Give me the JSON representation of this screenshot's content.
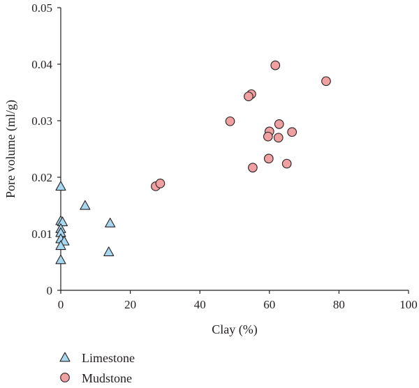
{
  "chart_data": {
    "type": "scatter",
    "xlabel": "Clay (%)",
    "ylabel": "Pore volume (ml/g)",
    "xlim": [
      0,
      100
    ],
    "ylim": [
      0,
      0.05
    ],
    "xticks": [
      0,
      20,
      40,
      60,
      80,
      100
    ],
    "yticks": [
      0,
      0.01,
      0.02,
      0.03,
      0.04,
      0.05
    ],
    "ytick_labels": [
      "0",
      "0.01",
      "0.02",
      "0.03",
      "0.04",
      "0.05"
    ],
    "grid": false,
    "legend_position": "bottom-left",
    "series": [
      {
        "name": "Limestone",
        "marker": "triangle",
        "color": "#a8d8f0",
        "stroke": "#231f20",
        "points": [
          [
            0,
            0.0183
          ],
          [
            0,
            0.0122
          ],
          [
            0.5,
            0.012
          ],
          [
            0,
            0.0108
          ],
          [
            0,
            0.0101
          ],
          [
            0,
            0.009
          ],
          [
            1.0,
            0.0086
          ],
          [
            0,
            0.0078
          ],
          [
            0,
            0.0053
          ],
          [
            7,
            0.0149
          ],
          [
            14.2,
            0.0118
          ],
          [
            13.8,
            0.0067
          ]
        ]
      },
      {
        "name": "Mudstone",
        "marker": "circle",
        "color": "#f0a0a0",
        "stroke": "#231f20",
        "points": [
          [
            61.7,
            0.0398
          ],
          [
            76.3,
            0.037
          ],
          [
            54.8,
            0.0347
          ],
          [
            54.0,
            0.0343
          ],
          [
            48.7,
            0.0299
          ],
          [
            62.8,
            0.0294
          ],
          [
            60.0,
            0.0281
          ],
          [
            66.5,
            0.028
          ],
          [
            59.6,
            0.0272
          ],
          [
            62.6,
            0.027
          ],
          [
            59.8,
            0.0233
          ],
          [
            65.0,
            0.0224
          ],
          [
            55.2,
            0.0217
          ],
          [
            27.3,
            0.0184
          ],
          [
            28.6,
            0.0189
          ]
        ]
      }
    ]
  }
}
